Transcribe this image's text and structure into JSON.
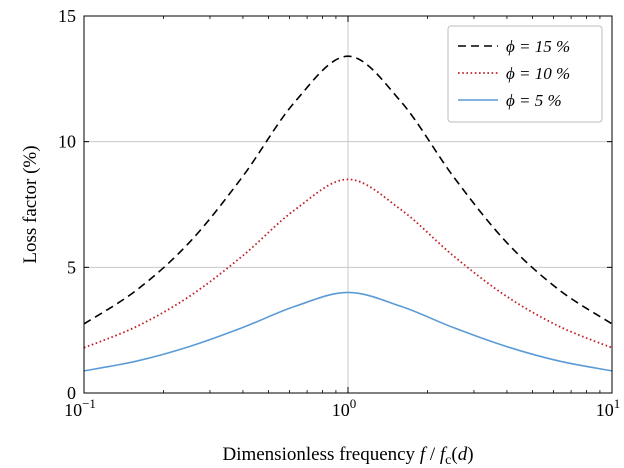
{
  "chart_data": {
    "type": "line",
    "xscale": "log",
    "xlim": [
      0.1,
      10
    ],
    "ylim": [
      0,
      15
    ],
    "grid": true,
    "legend_position": "top-right",
    "xlabel": "Dimensionless frequency f/f_c(d)",
    "ylabel": "Loss factor (%)",
    "x_ticks": [
      {
        "value": 0.1,
        "base": "10",
        "exp": "−1"
      },
      {
        "value": 1,
        "base": "10",
        "exp": "0"
      },
      {
        "value": 10,
        "base": "10",
        "exp": "1"
      }
    ],
    "y_ticks": [
      {
        "value": 0,
        "label": "0"
      },
      {
        "value": 5,
        "label": "5"
      },
      {
        "value": 10,
        "label": "10"
      },
      {
        "value": 15,
        "label": "15"
      }
    ],
    "series": [
      {
        "name": "ϕ = 15 %",
        "style": "dashed",
        "color": "#000000",
        "x": [
          0.1,
          0.1585,
          0.2512,
          0.3981,
          0.631,
          1,
          1.585,
          2.512,
          3.981,
          6.31,
          10
        ],
        "y": [
          2.75,
          4.1,
          6.0,
          8.6,
          11.6,
          13.4,
          11.6,
          8.6,
          6.0,
          4.1,
          2.75
        ]
      },
      {
        "name": "ϕ = 10 %",
        "style": "dotted",
        "color": "#c0202a",
        "x": [
          0.1,
          0.1585,
          0.2512,
          0.3981,
          0.631,
          1,
          1.585,
          2.512,
          3.981,
          6.31,
          10
        ],
        "y": [
          1.8,
          2.65,
          3.85,
          5.45,
          7.3,
          8.5,
          7.3,
          5.45,
          3.85,
          2.65,
          1.8
        ]
      },
      {
        "name": "ϕ = 5 %",
        "style": "solid",
        "color": "#5b9bd5",
        "x": [
          0.1,
          0.1585,
          0.2512,
          0.3981,
          0.631,
          1,
          1.585,
          2.512,
          3.981,
          6.31,
          10
        ],
        "y": [
          0.88,
          1.27,
          1.85,
          2.6,
          3.45,
          4.0,
          3.45,
          2.6,
          1.85,
          1.27,
          0.88
        ]
      }
    ]
  }
}
